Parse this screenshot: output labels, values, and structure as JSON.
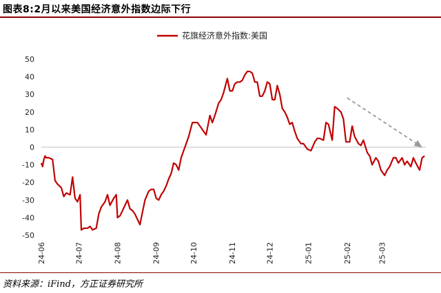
{
  "header": {
    "title": "图表8:2月以来美国经济意外指数边际下行"
  },
  "footer": {
    "source": "资料来源：iFind，方正证券研究所"
  },
  "chart_data": {
    "type": "line",
    "title": "",
    "xlabel": "",
    "ylabel": "",
    "ylim": [
      -50,
      50
    ],
    "yticks": [
      50,
      40,
      30,
      20,
      10,
      0,
      -10,
      -20,
      -30,
      -40,
      -50
    ],
    "xticks": [
      "24-06",
      "24-07",
      "24-08",
      "24-09",
      "24-10",
      "24-11",
      "24-12",
      "25-01",
      "25-02",
      "25-03"
    ],
    "grid": false,
    "legend_placement": "top-center",
    "colors": {
      "series": "#c00000",
      "arrow": "#999999"
    },
    "series": [
      {
        "name": "花旗经济意外指数:美国",
        "x": [
          "2024-06-01",
          "2024-06-02",
          "2024-06-03",
          "2024-06-04",
          "2024-06-05",
          "2024-06-07",
          "2024-06-10",
          "2024-06-12",
          "2024-06-14",
          "2024-06-17",
          "2024-06-19",
          "2024-06-21",
          "2024-06-24",
          "2024-06-26",
          "2024-06-28",
          "2024-06-30",
          "2024-07-02",
          "2024-07-03",
          "2024-07-05",
          "2024-07-08",
          "2024-07-10",
          "2024-07-12",
          "2024-07-15",
          "2024-07-17",
          "2024-07-19",
          "2024-07-22",
          "2024-07-24",
          "2024-07-26",
          "2024-07-29",
          "2024-07-31",
          "2024-08-01",
          "2024-08-03",
          "2024-08-05",
          "2024-08-07",
          "2024-08-09",
          "2024-08-11",
          "2024-08-13",
          "2024-08-15",
          "2024-08-17",
          "2024-08-19",
          "2024-08-21",
          "2024-08-23",
          "2024-08-26",
          "2024-08-28",
          "2024-08-30",
          "2024-09-01",
          "2024-09-03",
          "2024-09-05",
          "2024-09-07",
          "2024-09-09",
          "2024-09-11",
          "2024-09-13",
          "2024-09-15",
          "2024-09-17",
          "2024-09-19",
          "2024-09-21",
          "2024-09-23",
          "2024-09-25",
          "2024-09-27",
          "2024-09-30",
          "2024-10-02",
          "2024-10-04",
          "2024-10-07",
          "2024-10-09",
          "2024-10-11",
          "2024-10-14",
          "2024-10-16",
          "2024-10-18",
          "2024-10-21",
          "2024-10-23",
          "2024-10-25",
          "2024-10-28",
          "2024-10-30",
          "2024-11-01",
          "2024-11-03",
          "2024-11-05",
          "2024-11-07",
          "2024-11-09",
          "2024-11-11",
          "2024-11-13",
          "2024-11-15",
          "2024-11-17",
          "2024-11-19",
          "2024-11-21",
          "2024-11-23",
          "2024-11-25",
          "2024-11-27",
          "2024-11-29",
          "2024-12-01",
          "2024-12-03",
          "2024-12-05",
          "2024-12-07",
          "2024-12-09",
          "2024-12-11",
          "2024-12-13",
          "2024-12-15",
          "2024-12-17",
          "2024-12-19",
          "2024-12-21",
          "2024-12-23",
          "2024-12-26",
          "2024-12-28",
          "2024-12-31",
          "2025-01-03",
          "2025-01-06",
          "2025-01-08",
          "2025-01-10",
          "2025-01-13",
          "2025-01-15",
          "2025-01-17",
          "2025-01-20",
          "2025-01-22",
          "2025-01-24",
          "2025-01-27",
          "2025-01-29",
          "2025-01-31",
          "2025-02-03",
          "2025-02-05",
          "2025-02-07",
          "2025-02-10",
          "2025-02-12",
          "2025-02-14",
          "2025-02-17",
          "2025-02-19",
          "2025-02-21",
          "2025-02-24",
          "2025-02-26",
          "2025-02-28",
          "2025-03-03",
          "2025-03-05",
          "2025-03-07",
          "2025-03-10",
          "2025-03-12",
          "2025-03-14",
          "2025-03-17",
          "2025-03-19",
          "2025-03-21",
          "2025-03-24",
          "2025-03-26",
          "2025-03-28",
          "2025-03-31",
          "2025-04-02",
          "2025-04-04"
        ],
        "y": [
          -9,
          -11,
          -7,
          -5,
          -6,
          -6,
          -7,
          -19,
          -21,
          -23,
          -28,
          -26,
          -27,
          -17,
          -29,
          -31,
          -27,
          -47,
          -46,
          -46,
          -45,
          -47,
          -46,
          -38,
          -34,
          -31,
          -27,
          -33,
          -29,
          -27,
          -40,
          -39,
          -36,
          -33,
          -30,
          -35,
          -36,
          -38,
          -41,
          -44,
          -37,
          -30,
          -25,
          -24,
          -24,
          -29,
          -30,
          -27,
          -25,
          -22,
          -18,
          -15,
          -9,
          -10,
          -13,
          -6,
          -2,
          2,
          6,
          14,
          14,
          14,
          11,
          9,
          7,
          18,
          14,
          18,
          25,
          27,
          31,
          39,
          32,
          32,
          36,
          37,
          37,
          38,
          41,
          43,
          43,
          42,
          37,
          37,
          29,
          29,
          32,
          37,
          36,
          27,
          27,
          35,
          30,
          22,
          20,
          17,
          13,
          14,
          9,
          5,
          2,
          2,
          -1,
          -2,
          3,
          5,
          5,
          4,
          14,
          13,
          4,
          23,
          22,
          20,
          16,
          3,
          3,
          12,
          6,
          2,
          1,
          4,
          -3,
          -5,
          -10,
          -6,
          -8,
          -13,
          -16,
          -13,
          -11,
          -6,
          -6,
          -9,
          -6,
          -10,
          -8,
          -11,
          -6,
          -9,
          -13,
          -6,
          -5
        ]
      }
    ],
    "annotation": {
      "type": "arrow",
      "from": [
        "2025-02-01",
        28
      ],
      "to": [
        "2025-04-02",
        0
      ]
    }
  }
}
